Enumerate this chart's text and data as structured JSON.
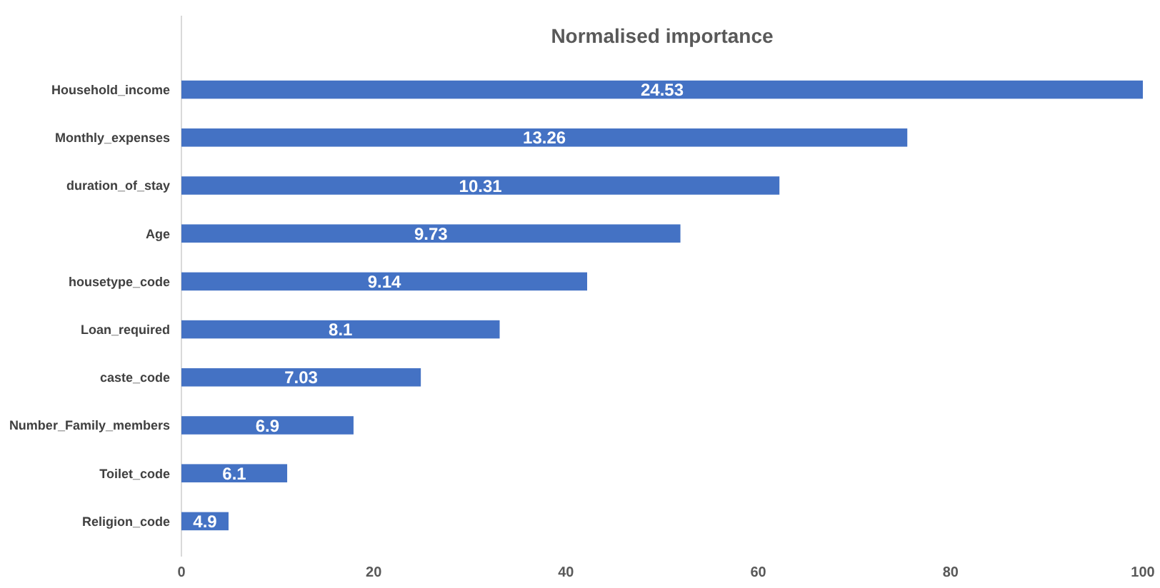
{
  "chart_data": {
    "type": "bar",
    "orientation": "horizontal",
    "title": "Normalised importance",
    "categories": [
      "Household_income",
      "Monthly_expenses",
      "duration_of_stay",
      "Age",
      "housetype_code",
      "Loan_required",
      "caste_code",
      "Number_Family_members",
      "Toilet_code",
      "Religion_code"
    ],
    "values": [
      100,
      75.5,
      62.2,
      51.9,
      42.2,
      33.1,
      24.9,
      17.9,
      11.0,
      4.9
    ],
    "annotations": [
      "24.53",
      "13.26",
      "10.31",
      "9.73",
      "9.14",
      "8.1",
      "7.03",
      "6.9",
      "6.1",
      "4.9"
    ],
    "color": "#4472c4",
    "xlim": [
      0,
      100
    ],
    "xticks": [
      0,
      20,
      40,
      60,
      80,
      100
    ],
    "grid": false
  }
}
